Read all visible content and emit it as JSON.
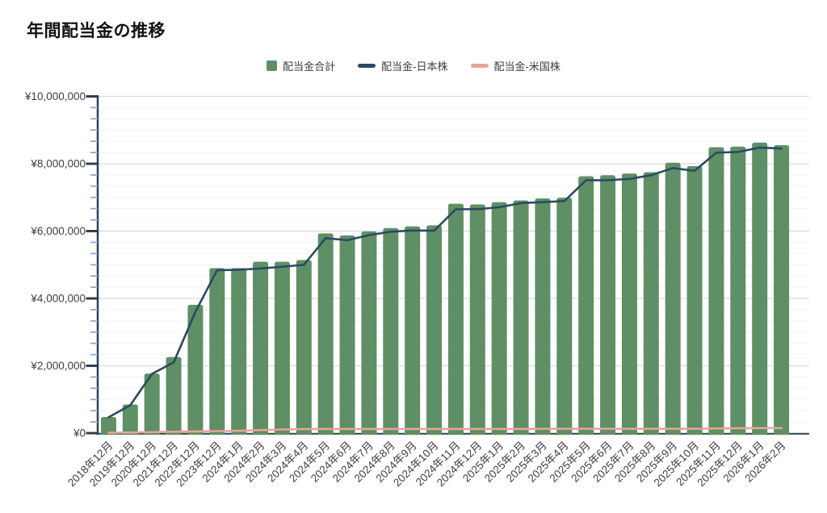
{
  "title": "年間配当金の推移",
  "legend": [
    {
      "label": "配当金合計",
      "swatch": "square",
      "color": "#5f8f64"
    },
    {
      "label": "配当金-日本株",
      "swatch": "line",
      "color": "#2b4a63"
    },
    {
      "label": "配当金-米国株",
      "swatch": "line",
      "color": "#e8a399"
    }
  ],
  "chart_data": {
    "type": "bar",
    "subtype": "bar+line combo",
    "title": "年間配当金の推移",
    "categories": [
      "2018年12月",
      "2019年12月",
      "2020年12月",
      "2021年12月",
      "2022年12月",
      "2023年12月",
      "2024年1月",
      "2024年2月",
      "2024年3月",
      "2024年4月",
      "2024年5月",
      "2024年6月",
      "2024年7月",
      "2024年8月",
      "2024年9月",
      "2024年10月",
      "2024年11月",
      "2024年12月",
      "2025年1月",
      "2025年2月",
      "2025年3月",
      "2025年4月",
      "2025年5月",
      "2025年6月",
      "2025年7月",
      "2025年8月",
      "2025年9月",
      "2025年10月",
      "2025年11月",
      "2025年12月",
      "2026年1月",
      "2026年2月"
    ],
    "series": [
      {
        "name": "配当金合計",
        "type": "bar",
        "color": "#5f8f64",
        "values": [
          480000,
          850000,
          1770000,
          2260000,
          3810000,
          4900000,
          4900000,
          5090000,
          5090000,
          5140000,
          5930000,
          5870000,
          5990000,
          6090000,
          6140000,
          6170000,
          6810000,
          6790000,
          6860000,
          6910000,
          6970000,
          6990000,
          7630000,
          7660000,
          7710000,
          7750000,
          8030000,
          7930000,
          8490000,
          8510000,
          8630000,
          8550000
        ]
      },
      {
        "name": "配当金-日本株",
        "type": "line",
        "color": "#2b4a63",
        "values": [
          470000,
          830000,
          1760000,
          2100000,
          3600000,
          4840000,
          4850000,
          4890000,
          4940000,
          5000000,
          5790000,
          5730000,
          5880000,
          5980000,
          6020000,
          6010000,
          6650000,
          6650000,
          6710000,
          6830000,
          6860000,
          6890000,
          7510000,
          7510000,
          7550000,
          7660000,
          7870000,
          7790000,
          8330000,
          8350000,
          8480000,
          8450000
        ]
      },
      {
        "name": "配当金-米国株",
        "type": "line",
        "color": "#e8a399",
        "values": [
          10000,
          20000,
          30000,
          40000,
          50000,
          60000,
          70000,
          90000,
          110000,
          120000,
          125000,
          125000,
          125000,
          125000,
          125000,
          125000,
          125000,
          125000,
          125000,
          125000,
          130000,
          130000,
          130000,
          130000,
          130000,
          130000,
          130000,
          130000,
          140000,
          145000,
          150000,
          150000
        ]
      }
    ],
    "xlabel": "",
    "ylabel": "",
    "ylim": [
      0,
      10000000
    ],
    "y_tick_labels": [
      "¥0",
      "¥2,000,000",
      "¥4,000,000",
      "¥6,000,000",
      "¥8,000,000",
      "¥10,000,000"
    ],
    "y_major_step": 2000000,
    "y_minor_divisions_per_major": 6,
    "grid": "horizontal major + minor, no vertical",
    "legend_position": "top-center",
    "x_label_rotation_deg": -45,
    "currency_prefix": "¥",
    "colors": {
      "axis": "#2f4050",
      "minor_tick": "#8ea9d6",
      "major_grid": "#dcdcdc",
      "minor_grid": "#f3f3f3",
      "label_text": "#404040",
      "background": "#ffffff"
    }
  }
}
